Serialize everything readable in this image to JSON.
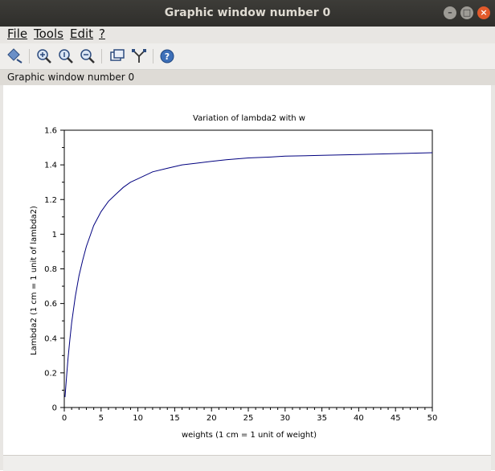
{
  "window": {
    "title": "Graphic window number 0"
  },
  "menu": {
    "file": "File",
    "tools": "Tools",
    "edit": "Edit",
    "help": "?"
  },
  "toolbar": {
    "icons": [
      "rotate-icon",
      "zoom-in-icon",
      "zoom-original-icon",
      "zoom-out-icon",
      "datatip-icon",
      "edit-axes-icon",
      "help-icon"
    ]
  },
  "infobar": {
    "text": "Graphic window number 0"
  },
  "chart_data": {
    "type": "line",
    "title": "Variation of lambda2 with w",
    "xlabel": "weights (1 cm = 1 unit of weight)",
    "ylabel": "Lambda2 (1 cm = 1 unit of lambda2)",
    "xlim": [
      0,
      50
    ],
    "ylim": [
      0,
      1.6
    ],
    "xticks": [
      "0",
      "5",
      "10",
      "15",
      "20",
      "25",
      "30",
      "35",
      "40",
      "45",
      "50"
    ],
    "yticks": [
      "0",
      "0.2",
      "0.4",
      "0.6",
      "0.8",
      "1",
      "1.2",
      "1.4",
      "1.6"
    ],
    "series": [
      {
        "color": "#00007f",
        "x": [
          0.1,
          0.3,
          0.5,
          0.75,
          1,
          1.5,
          2,
          2.5,
          3,
          3.5,
          4,
          5,
          6,
          7,
          8,
          9,
          10,
          12,
          14,
          16,
          18,
          20,
          22,
          25,
          28,
          30,
          35,
          40,
          45,
          50
        ],
        "y": [
          0.06,
          0.17,
          0.28,
          0.39,
          0.49,
          0.64,
          0.76,
          0.85,
          0.93,
          0.99,
          1.05,
          1.13,
          1.19,
          1.23,
          1.27,
          1.3,
          1.32,
          1.36,
          1.38,
          1.4,
          1.41,
          1.42,
          1.43,
          1.44,
          1.445,
          1.45,
          1.455,
          1.46,
          1.465,
          1.47
        ]
      }
    ]
  }
}
